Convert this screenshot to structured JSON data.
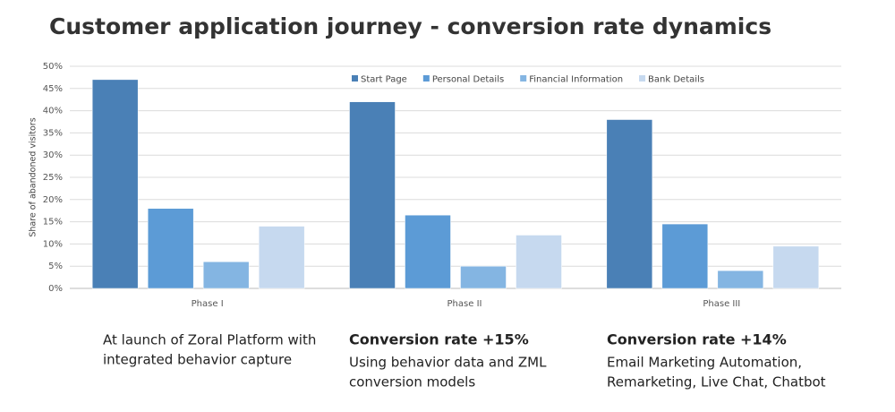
{
  "chart_data": {
    "type": "bar",
    "title": "Customer application journey  - conversion rate dynamics",
    "y_label": "Share of abandoned visitors",
    "categories": [
      "Phase I",
      "Phase II",
      "Phase III"
    ],
    "series": [
      {
        "name": "Start Page",
        "color": "#4a80b6",
        "values": [
          47,
          42,
          38
        ]
      },
      {
        "name": "Personal Details",
        "color": "#5c9bd6",
        "values": [
          18,
          16.5,
          14.5
        ]
      },
      {
        "name": "Financial Information",
        "color": "#84b5e2",
        "values": [
          6,
          5,
          4
        ]
      },
      {
        "name": "Bank Details",
        "color": "#c6d9ef",
        "values": [
          14,
          12,
          9.5
        ]
      }
    ],
    "ylim": [
      0,
      50
    ],
    "yticks": [
      {
        "value": 0,
        "label": "0%"
      },
      {
        "value": 5,
        "label": "5%"
      },
      {
        "value": 10,
        "label": "10%"
      },
      {
        "value": 15,
        "label": "15%"
      },
      {
        "value": 20,
        "label": "20%"
      },
      {
        "value": 25,
        "label": "25%"
      },
      {
        "value": 30,
        "label": "30%"
      },
      {
        "value": 35,
        "label": "35%"
      },
      {
        "value": 40,
        "label": "40%"
      },
      {
        "value": 45,
        "label": "45%"
      },
      {
        "value": 50,
        "label": "50%"
      }
    ],
    "grid": true,
    "legend": "top",
    "annotations": [
      {
        "lines": [
          "At launch of Zoral Platform with",
          "integrated behavior capture"
        ]
      },
      {
        "heading": "Conversion rate +15%",
        "lines": [
          "Using behavior data and ZML",
          "conversion models"
        ]
      },
      {
        "heading": "Conversion rate +14%",
        "lines": [
          "Email Marketing Automation,",
          "Remarketing, Live Chat, Chatbot"
        ]
      }
    ]
  }
}
